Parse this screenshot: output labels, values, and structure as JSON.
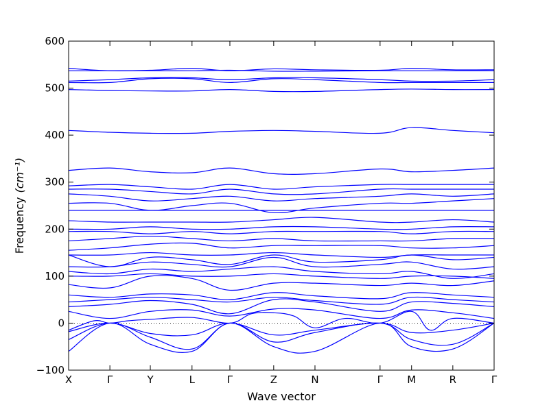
{
  "chart_data": {
    "type": "line",
    "title": "",
    "xlabel": "Wave vector",
    "ylabel": "Frequency",
    "ylabel_unit": "(cm⁻¹)",
    "ylim": [
      -100,
      600
    ],
    "yticks": [
      -100,
      0,
      100,
      200,
      300,
      400,
      500,
      600
    ],
    "zero_line": {
      "y": 0,
      "style": "dotted"
    },
    "grid": false,
    "line_color": "#0000ff",
    "high_symmetry_points": [
      {
        "label": "X",
        "x": 0.0
      },
      {
        "label": "Γ",
        "x": 0.097
      },
      {
        "label": "Y",
        "x": 0.192
      },
      {
        "label": "L",
        "x": 0.29
      },
      {
        "label": "Γ",
        "x": 0.379
      },
      {
        "label": "Z",
        "x": 0.482
      },
      {
        "label": "N",
        "x": 0.579
      },
      {
        "label": "Γ",
        "x": 0.732
      },
      {
        "label": "M",
        "x": 0.806
      },
      {
        "label": "R",
        "x": 0.903
      },
      {
        "label": "Γ",
        "x": 1.0
      }
    ],
    "bands": [
      {
        "x": [
          0,
          0.097,
          0.192,
          0.29,
          0.379,
          0.482,
          0.579,
          0.732,
          0.806,
          0.903,
          1.0
        ],
        "y": [
          -60,
          0,
          -45,
          -60,
          0,
          -50,
          -60,
          0,
          -50,
          -55,
          0
        ]
      },
      {
        "x": [
          0,
          0.097,
          0.192,
          0.29,
          0.379,
          0.482,
          0.579,
          0.732,
          0.806,
          0.903,
          1.0
        ],
        "y": [
          -35,
          0,
          -30,
          -55,
          0,
          -40,
          -20,
          0,
          -35,
          -45,
          0
        ]
      },
      {
        "x": [
          0,
          0.097,
          0.192,
          0.29,
          0.379,
          0.482,
          0.579,
          0.732,
          0.806,
          0.903,
          1.0
        ],
        "y": [
          -18,
          0,
          -22,
          -25,
          0,
          -25,
          -15,
          0,
          -20,
          -15,
          0
        ]
      },
      {
        "x": [
          0,
          0.06,
          0.097,
          0.14,
          0.192,
          0.29,
          0.379,
          0.43,
          0.482,
          0.53,
          0.579,
          0.65,
          0.732,
          0.806,
          0.85,
          0.903,
          1.0
        ],
        "y": [
          -15,
          5,
          0,
          5,
          8,
          12,
          0,
          20,
          22,
          15,
          -10,
          10,
          0,
          25,
          -15,
          10,
          0
        ]
      },
      {
        "x": [
          0,
          0.097,
          0.192,
          0.29,
          0.379,
          0.482,
          0.579,
          0.732,
          0.806,
          0.903,
          1.0
        ],
        "y": [
          25,
          10,
          25,
          28,
          15,
          30,
          28,
          10,
          28,
          22,
          10
        ]
      },
      {
        "x": [
          0,
          0.097,
          0.192,
          0.29,
          0.379,
          0.482,
          0.579,
          0.732,
          0.806,
          0.903,
          1.0
        ],
        "y": [
          35,
          40,
          48,
          40,
          20,
          50,
          45,
          25,
          45,
          42,
          35
        ]
      },
      {
        "x": [
          0,
          0.097,
          0.192,
          0.29,
          0.379,
          0.482,
          0.579,
          0.732,
          0.806,
          0.903,
          1.0
        ],
        "y": [
          45,
          50,
          55,
          50,
          45,
          55,
          48,
          40,
          55,
          50,
          45
        ]
      },
      {
        "x": [
          0,
          0.097,
          0.192,
          0.29,
          0.379,
          0.482,
          0.579,
          0.732,
          0.806,
          0.903,
          1.0
        ],
        "y": [
          60,
          55,
          62,
          60,
          50,
          65,
          58,
          52,
          65,
          60,
          55
        ]
      },
      {
        "x": [
          0,
          0.097,
          0.192,
          0.29,
          0.379,
          0.482,
          0.579,
          0.732,
          0.806,
          0.903,
          1.0
        ],
        "y": [
          82,
          75,
          100,
          95,
          70,
          85,
          85,
          80,
          85,
          80,
          90
        ]
      },
      {
        "x": [
          0,
          0.097,
          0.192,
          0.29,
          0.379,
          0.482,
          0.579,
          0.732,
          0.806,
          0.903,
          1.0
        ],
        "y": [
          100,
          100,
          105,
          100,
          100,
          105,
          100,
          95,
          100,
          100,
          95
        ]
      },
      {
        "x": [
          0,
          0.097,
          0.192,
          0.29,
          0.379,
          0.482,
          0.579,
          0.732,
          0.806,
          0.903,
          1.0
        ],
        "y": [
          110,
          105,
          115,
          110,
          115,
          120,
          110,
          105,
          110,
          95,
          105
        ]
      },
      {
        "x": [
          0,
          0.097,
          0.192,
          0.29,
          0.379,
          0.482,
          0.579,
          0.732,
          0.806,
          0.903,
          1.0
        ],
        "y": [
          120,
          120,
          130,
          125,
          120,
          140,
          120,
          125,
          130,
          115,
          120
        ]
      },
      {
        "x": [
          0,
          0.097,
          0.192,
          0.29,
          0.379,
          0.482,
          0.579,
          0.732,
          0.806,
          0.903,
          1.0
        ],
        "y": [
          145,
          120,
          140,
          135,
          125,
          145,
          130,
          135,
          145,
          135,
          140
        ]
      },
      {
        "x": [
          0,
          0.097,
          0.192,
          0.29,
          0.379,
          0.482,
          0.579,
          0.732,
          0.806,
          0.903,
          1.0
        ],
        "y": [
          145,
          145,
          150,
          145,
          145,
          150,
          145,
          140,
          145,
          145,
          145
        ]
      },
      {
        "x": [
          0,
          0.097,
          0.192,
          0.29,
          0.379,
          0.482,
          0.579,
          0.732,
          0.806,
          0.903,
          1.0
        ],
        "y": [
          155,
          160,
          168,
          170,
          160,
          165,
          165,
          165,
          160,
          160,
          165
        ]
      },
      {
        "x": [
          0,
          0.097,
          0.192,
          0.29,
          0.379,
          0.482,
          0.579,
          0.732,
          0.806,
          0.903,
          1.0
        ],
        "y": [
          175,
          180,
          185,
          180,
          175,
          180,
          175,
          175,
          175,
          180,
          180
        ]
      },
      {
        "x": [
          0,
          0.097,
          0.192,
          0.29,
          0.379,
          0.482,
          0.579,
          0.732,
          0.806,
          0.903,
          1.0
        ],
        "y": [
          195,
          195,
          190,
          195,
          190,
          195,
          195,
          195,
          190,
          195,
          195
        ]
      },
      {
        "x": [
          0,
          0.097,
          0.192,
          0.29,
          0.379,
          0.482,
          0.579,
          0.732,
          0.806,
          0.903,
          1.0
        ],
        "y": [
          200,
          200,
          205,
          200,
          200,
          205,
          205,
          200,
          200,
          205,
          205
        ]
      },
      {
        "x": [
          0,
          0.097,
          0.192,
          0.29,
          0.379,
          0.482,
          0.579,
          0.732,
          0.806,
          0.903,
          1.0
        ],
        "y": [
          218,
          215,
          215,
          215,
          215,
          220,
          225,
          215,
          215,
          220,
          215
        ]
      },
      {
        "x": [
          0,
          0.097,
          0.192,
          0.29,
          0.379,
          0.482,
          0.579,
          0.732,
          0.806,
          0.903,
          1.0
        ],
        "y": [
          240,
          240,
          240,
          240,
          240,
          240,
          240,
          240,
          240,
          240,
          240
        ]
      },
      {
        "x": [
          0,
          0.097,
          0.192,
          0.29,
          0.379,
          0.482,
          0.579,
          0.732,
          0.806,
          0.903,
          1.0
        ],
        "y": [
          255,
          255,
          240,
          250,
          255,
          235,
          245,
          255,
          255,
          260,
          265
        ]
      },
      {
        "x": [
          0,
          0.097,
          0.192,
          0.29,
          0.379,
          0.482,
          0.579,
          0.732,
          0.806,
          0.903,
          1.0
        ],
        "y": [
          275,
          270,
          260,
          265,
          270,
          260,
          265,
          270,
          275,
          270,
          275
        ]
      },
      {
        "x": [
          0,
          0.097,
          0.192,
          0.29,
          0.379,
          0.482,
          0.579,
          0.732,
          0.806,
          0.903,
          1.0
        ],
        "y": [
          285,
          285,
          280,
          275,
          285,
          275,
          275,
          285,
          285,
          285,
          285
        ]
      },
      {
        "x": [
          0,
          0.097,
          0.192,
          0.29,
          0.379,
          0.482,
          0.579,
          0.732,
          0.806,
          0.903,
          1.0
        ],
        "y": [
          292,
          295,
          290,
          285,
          295,
          285,
          290,
          295,
          295,
          295,
          295
        ]
      },
      {
        "x": [
          0,
          0.097,
          0.192,
          0.29,
          0.379,
          0.482,
          0.579,
          0.732,
          0.806,
          0.903,
          1.0
        ],
        "y": [
          325,
          330,
          322,
          320,
          330,
          318,
          318,
          328,
          322,
          325,
          330
        ]
      },
      {
        "x": [
          0,
          0.097,
          0.192,
          0.29,
          0.379,
          0.482,
          0.579,
          0.732,
          0.806,
          0.903,
          1.0
        ],
        "y": [
          410,
          406,
          404,
          404,
          408,
          410,
          408,
          404,
          416,
          410,
          405
        ]
      },
      {
        "x": [
          0,
          0.097,
          0.192,
          0.29,
          0.379,
          0.482,
          0.579,
          0.732,
          0.806,
          0.903,
          1.0
        ],
        "y": [
          497,
          495,
          494,
          494,
          497,
          493,
          493,
          497,
          498,
          497,
          497
        ]
      },
      {
        "x": [
          0,
          0.097,
          0.192,
          0.29,
          0.379,
          0.482,
          0.579,
          0.732,
          0.806,
          0.903,
          1.0
        ],
        "y": [
          512,
          512,
          520,
          520,
          512,
          520,
          518,
          512,
          512,
          512,
          512
        ]
      },
      {
        "x": [
          0,
          0.097,
          0.192,
          0.29,
          0.379,
          0.482,
          0.579,
          0.732,
          0.806,
          0.903,
          1.0
        ],
        "y": [
          515,
          518,
          522,
          522,
          518,
          522,
          522,
          518,
          515,
          515,
          518
        ]
      },
      {
        "x": [
          0,
          0.097,
          0.192,
          0.29,
          0.379,
          0.482,
          0.579,
          0.732,
          0.806,
          0.903,
          1.0
        ],
        "y": [
          537,
          537,
          537,
          537,
          538,
          536,
          536,
          537,
          537,
          537,
          537
        ]
      },
      {
        "x": [
          0,
          0.097,
          0.192,
          0.29,
          0.379,
          0.482,
          0.579,
          0.732,
          0.806,
          0.903,
          1.0
        ],
        "y": [
          542,
          537,
          538,
          542,
          537,
          541,
          539,
          538,
          542,
          539,
          539
        ]
      }
    ]
  }
}
